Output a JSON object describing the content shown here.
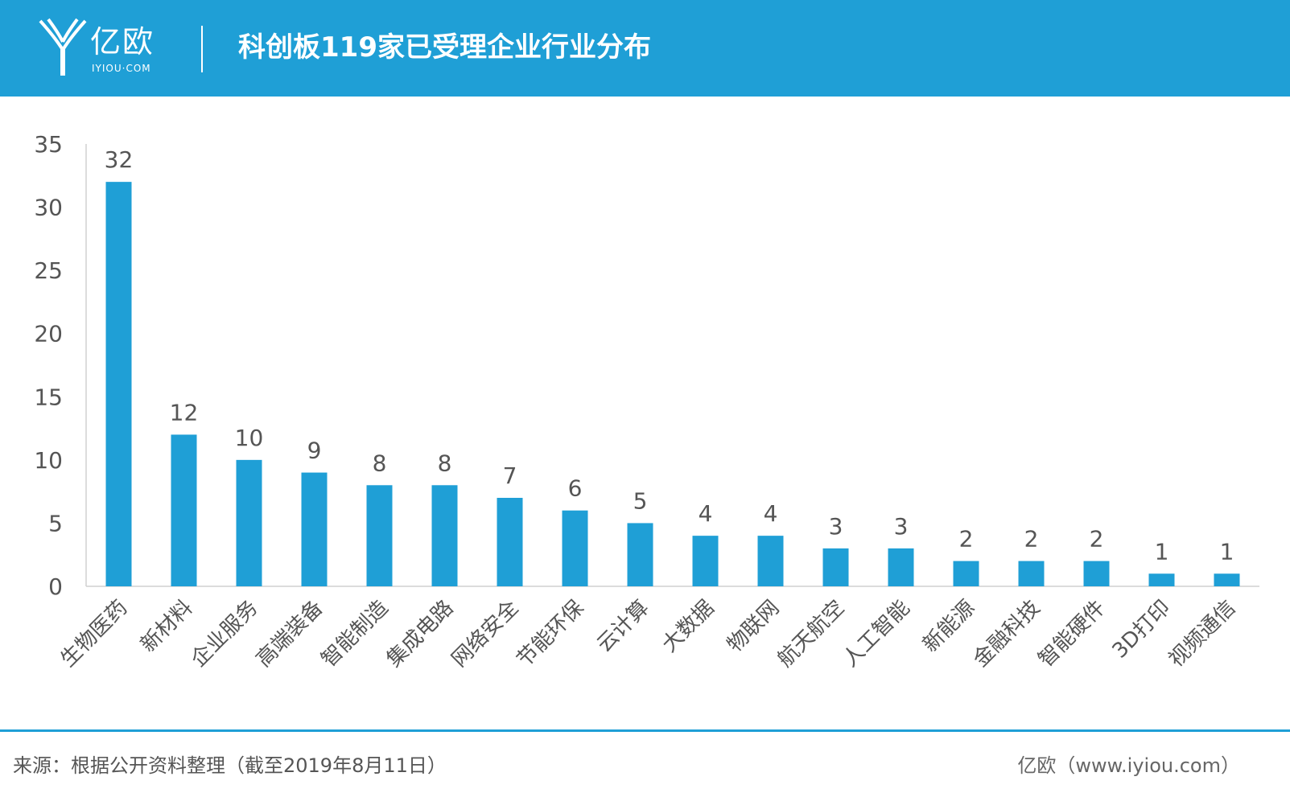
{
  "header": {
    "logo_cn": "亿欧",
    "logo_en": "IYIOU·COM",
    "title": "科创板119家已受理企业行业分布"
  },
  "footer": {
    "source": "来源：根据公开资料整理（截至2019年8月11日）",
    "credit": "亿欧（www.iyiou.com）"
  },
  "colors": {
    "brand": "#1f9fd6",
    "bar": "#1f9fd6"
  },
  "chart_data": {
    "type": "bar",
    "title": "",
    "xlabel": "",
    "ylabel": "",
    "ylim": [
      0,
      35
    ],
    "yticks": [
      0,
      5,
      10,
      15,
      20,
      25,
      30,
      35
    ],
    "grid": false,
    "legend": "none",
    "categories": [
      "生物医药",
      "新材料",
      "企业服务",
      "高端装备",
      "智能制造",
      "集成电路",
      "网络安全",
      "节能环保",
      "云计算",
      "大数据",
      "物联网",
      "航天航空",
      "人工智能",
      "新能源",
      "金融科技",
      "智能硬件",
      "3D打印",
      "视频通信"
    ],
    "values": [
      32,
      12,
      10,
      9,
      8,
      8,
      7,
      6,
      5,
      4,
      4,
      3,
      3,
      2,
      2,
      2,
      1,
      1
    ]
  }
}
